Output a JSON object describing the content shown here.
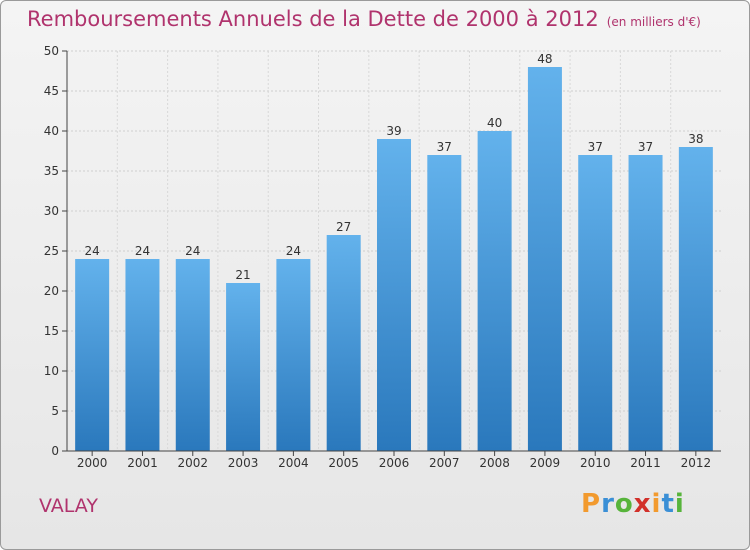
{
  "title": "Remboursements Annuels de la Dette de 2000 à 2012",
  "subtitle": "(en milliers d'€)",
  "place": "VALAY",
  "logo": {
    "letters": [
      "P",
      "r",
      "o",
      "x",
      "i",
      "t",
      "i"
    ],
    "colors": [
      "#f29a2e",
      "#3a8fd6",
      "#57b43b",
      "#d2302a",
      "#f29a2e",
      "#3a8fd6",
      "#57b43b"
    ]
  },
  "colors": {
    "title": "#b0336d",
    "bar_top": "#63b2ec",
    "bar_bottom": "#2a78bc",
    "axis": "#444444"
  },
  "chart_data": {
    "type": "bar",
    "categories": [
      "2000",
      "2001",
      "2002",
      "2003",
      "2004",
      "2005",
      "2006",
      "2007",
      "2008",
      "2009",
      "2010",
      "2011",
      "2012"
    ],
    "values": [
      24,
      24,
      24,
      21,
      24,
      27,
      39,
      37,
      40,
      48,
      37,
      37,
      38
    ],
    "ylim": [
      0,
      50
    ],
    "yticks": [
      0,
      5,
      10,
      15,
      20,
      25,
      30,
      35,
      40,
      45,
      50
    ],
    "grid": true,
    "data_labels": true
  }
}
